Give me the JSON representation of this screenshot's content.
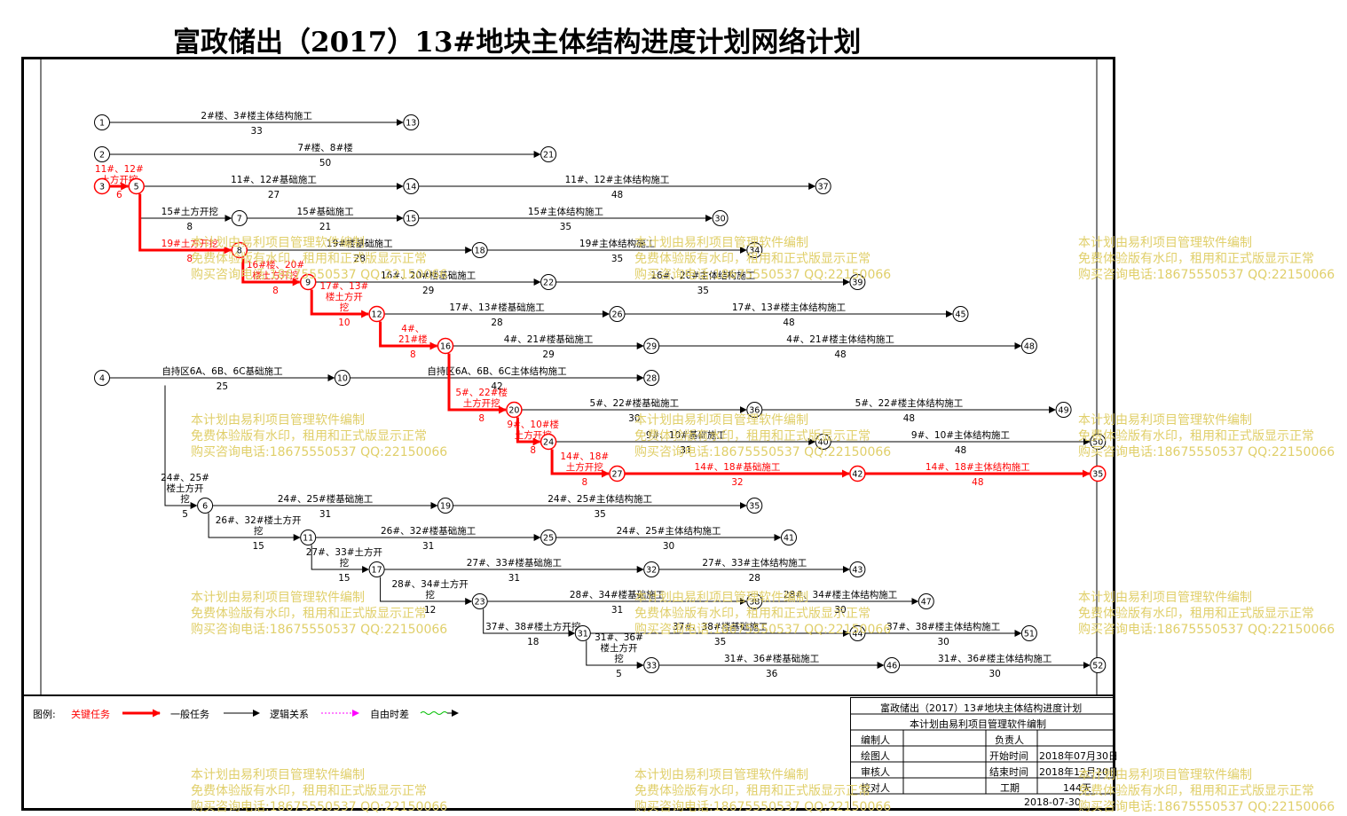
{
  "title": "富政储出（2017）13#地块主体结构进度计划网络计划",
  "colors": {
    "critical": "#ff0000",
    "normal": "#000000",
    "free_float": "#00c000",
    "logic": "#ff00ff",
    "watermark": "#e0cf6a"
  },
  "nodes": [
    {
      "id": "1",
      "col": 0,
      "row": 0
    },
    {
      "id": "13",
      "col": 9,
      "row": 0
    },
    {
      "id": "2",
      "col": 0,
      "row": 1
    },
    {
      "id": "21",
      "col": 13,
      "row": 1
    },
    {
      "id": "3",
      "col": 0,
      "row": 2
    },
    {
      "id": "5",
      "col": 1,
      "row": 2
    },
    {
      "id": "14",
      "col": 9,
      "row": 2
    },
    {
      "id": "37",
      "col": 21,
      "row": 2
    },
    {
      "id": "7",
      "col": 4,
      "row": 3
    },
    {
      "id": "15",
      "col": 9,
      "row": 3
    },
    {
      "id": "30",
      "col": 18,
      "row": 3
    },
    {
      "id": "8",
      "col": 4,
      "row": 4
    },
    {
      "id": "18",
      "col": 11,
      "row": 4
    },
    {
      "id": "34",
      "col": 19,
      "row": 4
    },
    {
      "id": "9",
      "col": 6,
      "row": 5
    },
    {
      "id": "22",
      "col": 13,
      "row": 5
    },
    {
      "id": "39",
      "col": 22,
      "row": 5
    },
    {
      "id": "12",
      "col": 8,
      "row": 6
    },
    {
      "id": "26",
      "col": 15,
      "row": 6
    },
    {
      "id": "45",
      "col": 25,
      "row": 6
    },
    {
      "id": "16",
      "col": 10,
      "row": 7
    },
    {
      "id": "29",
      "col": 16,
      "row": 7
    },
    {
      "id": "48",
      "col": 27,
      "row": 7
    },
    {
      "id": "4",
      "col": 0,
      "row": 8
    },
    {
      "id": "10",
      "col": 7,
      "row": 8
    },
    {
      "id": "28",
      "col": 16,
      "row": 8
    },
    {
      "id": "20",
      "col": 12,
      "row": 9
    },
    {
      "id": "36",
      "col": 19,
      "row": 9
    },
    {
      "id": "49",
      "col": 28,
      "row": 9
    },
    {
      "id": "24",
      "col": 13,
      "row": 10
    },
    {
      "id": "40",
      "col": 21,
      "row": 10
    },
    {
      "id": "50",
      "col": 29,
      "row": 10
    },
    {
      "id": "27",
      "col": 15,
      "row": 11
    },
    {
      "id": "42",
      "col": 22,
      "row": 11
    },
    {
      "id": "35",
      "col": 29,
      "row": 11
    },
    {
      "id": "6",
      "col": 3,
      "row": 12
    },
    {
      "id": "19",
      "col": 10,
      "row": 12
    },
    {
      "id": "35b",
      "col": 19,
      "row": 12
    },
    {
      "id": "11",
      "col": 6,
      "row": 13
    },
    {
      "id": "25",
      "col": 13,
      "row": 13
    },
    {
      "id": "41",
      "col": 20,
      "row": 13
    },
    {
      "id": "17",
      "col": 8,
      "row": 14
    },
    {
      "id": "32",
      "col": 16,
      "row": 14
    },
    {
      "id": "43",
      "col": 22,
      "row": 14
    },
    {
      "id": "23",
      "col": 11,
      "row": 15
    },
    {
      "id": "38",
      "col": 19,
      "row": 15
    },
    {
      "id": "47",
      "col": 24,
      "row": 15
    },
    {
      "id": "31",
      "col": 14,
      "row": 16
    },
    {
      "id": "44",
      "col": 22,
      "row": 16
    },
    {
      "id": "51",
      "col": 27,
      "row": 16
    },
    {
      "id": "33",
      "col": 16,
      "row": 17
    },
    {
      "id": "46",
      "col": 23,
      "row": 17
    },
    {
      "id": "52",
      "col": 29,
      "row": 17
    }
  ],
  "node_labels": {
    "35b": "35"
  },
  "tasks": [
    {
      "from": "1",
      "to": "13",
      "name": "2#楼、3#楼主体结构施工",
      "dur": "33",
      "critical": false
    },
    {
      "from": "2",
      "to": "21",
      "name": "7#楼、8#楼",
      "dur": "50",
      "critical": false
    },
    {
      "from": "3",
      "to": "5",
      "name": "11#、12#\n土方开挖",
      "dur": "6",
      "critical": true,
      "above": true
    },
    {
      "from": "5",
      "to": "14",
      "name": "11#、12#基础施工",
      "dur": "27",
      "critical": false
    },
    {
      "from": "14",
      "to": "37",
      "name": "11#、12#主体结构施工",
      "dur": "48",
      "critical": false
    },
    {
      "from": "5",
      "to": "7",
      "name": "15#土方开挖",
      "dur": "8",
      "critical": false,
      "via": "down"
    },
    {
      "from": "7",
      "to": "15",
      "name": "15#基础施工",
      "dur": "21",
      "critical": false
    },
    {
      "from": "15",
      "to": "30",
      "name": "15#主体结构施工",
      "dur": "35",
      "critical": false
    },
    {
      "from": "5",
      "to": "8",
      "name": "19#土方开挖",
      "dur": "8",
      "critical": true,
      "via": "down"
    },
    {
      "from": "8",
      "to": "18",
      "name": "19#楼基础施工",
      "dur": "28",
      "critical": false
    },
    {
      "from": "18",
      "to": "34",
      "name": "19#主体结构施工",
      "dur": "35",
      "critical": false
    },
    {
      "from": "8",
      "to": "9",
      "name": "16#楼、20#\n楼土方开挖",
      "dur": "8",
      "critical": true,
      "via": "down"
    },
    {
      "from": "9",
      "to": "22",
      "name": "16#、20#楼基础施工",
      "dur": "29",
      "critical": false
    },
    {
      "from": "22",
      "to": "39",
      "name": "16#、20#主体结构施工",
      "dur": "35",
      "critical": false
    },
    {
      "from": "9",
      "to": "12",
      "name": "17#、13#\n楼土方开\n挖",
      "dur": "10",
      "critical": true,
      "via": "down"
    },
    {
      "from": "12",
      "to": "26",
      "name": "17#、13#楼基础施工",
      "dur": "28",
      "critical": false
    },
    {
      "from": "26",
      "to": "45",
      "name": "17#、13#楼主体结构施工",
      "dur": "48",
      "critical": false
    },
    {
      "from": "12",
      "to": "16",
      "name": "4#、\n21#楼",
      "dur": "8",
      "critical": true,
      "via": "down"
    },
    {
      "from": "16",
      "to": "29",
      "name": "4#、21#楼基础施工",
      "dur": "29",
      "critical": false
    },
    {
      "from": "29",
      "to": "48",
      "name": "4#、21#楼主体结构施工",
      "dur": "48",
      "critical": false
    },
    {
      "from": "4",
      "to": "10",
      "name": "自持区6A、6B、6C基础施工",
      "dur": "25",
      "critical": false
    },
    {
      "from": "10",
      "to": "28",
      "name": "自持区6A、6B、6C主体结构施工",
      "dur": "42",
      "critical": false
    },
    {
      "from": "16",
      "to": "20",
      "name": "5#、22#楼\n土方开挖",
      "dur": "8",
      "critical": true,
      "via": "down"
    },
    {
      "from": "20",
      "to": "36",
      "name": "5#、22#楼基础施工",
      "dur": "30",
      "critical": false
    },
    {
      "from": "36",
      "to": "49",
      "name": "5#、22#楼主体结构施工",
      "dur": "48",
      "critical": false
    },
    {
      "from": "20",
      "to": "24",
      "name": "9#、10#楼\n土方开挖",
      "dur": "8",
      "critical": true,
      "via": "down"
    },
    {
      "from": "24",
      "to": "40",
      "name": "9#、10#基础施工",
      "dur": "31",
      "critical": false
    },
    {
      "from": "40",
      "to": "50",
      "name": "9#、10#主体结构施工",
      "dur": "48",
      "critical": false
    },
    {
      "from": "24",
      "to": "27",
      "name": "14#、18#\n土方开挖",
      "dur": "8",
      "critical": true,
      "via": "down"
    },
    {
      "from": "27",
      "to": "42",
      "name": "14#、18#基础施工",
      "dur": "32",
      "critical": true
    },
    {
      "from": "42",
      "to": "35",
      "name": "14#、18#主体结构施工",
      "dur": "48",
      "critical": true
    },
    {
      "from": "4",
      "to": "6",
      "name": "24#、25#\n楼土方开\n挖",
      "dur": "5",
      "critical": false,
      "via": "down",
      "vx": 186
    },
    {
      "from": "6",
      "to": "19",
      "name": "24#、25#楼基础施工",
      "dur": "31",
      "critical": false
    },
    {
      "from": "19",
      "to": "35b",
      "name": "24#、25#主体结构施工",
      "dur": "35",
      "critical": false
    },
    {
      "from": "6",
      "to": "11",
      "name": "26#、32#楼土方开\n挖",
      "dur": "15",
      "critical": false,
      "via": "down"
    },
    {
      "from": "11",
      "to": "25",
      "name": "26#、32#楼基础施工",
      "dur": "31",
      "critical": false
    },
    {
      "from": "25",
      "to": "41",
      "name": "24#、25#主体结构施工",
      "dur": "30",
      "critical": false
    },
    {
      "from": "11",
      "to": "17",
      "name": "27#、33#土方开\n挖",
      "dur": "15",
      "critical": false,
      "via": "down"
    },
    {
      "from": "17",
      "to": "32",
      "name": "27#、33#楼基础施工",
      "dur": "31",
      "critical": false
    },
    {
      "from": "32",
      "to": "43",
      "name": "27#、33#主体结构施工",
      "dur": "28",
      "critical": false
    },
    {
      "from": "17",
      "to": "23",
      "name": "28#、34#土方开\n挖",
      "dur": "12",
      "critical": false,
      "via": "down"
    },
    {
      "from": "23",
      "to": "38",
      "name": "28#、34#楼基础施工",
      "dur": "31",
      "critical": false
    },
    {
      "from": "38",
      "to": "47",
      "name": "28#、34#楼主体结构施工",
      "dur": "30",
      "critical": false
    },
    {
      "from": "23",
      "to": "31",
      "name": "37#、38#楼土方开挖",
      "dur": "18",
      "critical": false,
      "via": "down"
    },
    {
      "from": "31",
      "to": "44",
      "name": "37#、38#楼基础施工",
      "dur": "35",
      "critical": false
    },
    {
      "from": "44",
      "to": "51",
      "name": "37#、38#楼主体结构施工",
      "dur": "30",
      "critical": false
    },
    {
      "from": "31",
      "to": "33",
      "name": "31#、36#\n楼土方开\n挖",
      "dur": "5",
      "critical": false,
      "via": "down"
    },
    {
      "from": "33",
      "to": "46",
      "name": "31#、36#楼基础施工",
      "dur": "36",
      "critical": false
    },
    {
      "from": "46",
      "to": "52",
      "name": "31#、36#楼主体结构施工",
      "dur": "30",
      "critical": false
    }
  ],
  "legend": {
    "prefix": "图例:",
    "critical": "关键任务",
    "normal": "一般任务",
    "logic": "逻辑关系",
    "float": "自由时差"
  },
  "info": {
    "title": "富政储出（2017）13#地块主体结构进度计划",
    "subtitle": "本计划由易利项目管理软件编制",
    "editor": "编制人",
    "drawer": "绘图人",
    "reviewer": "审核人",
    "checker": "校对人",
    "manager": "负责人",
    "start_label": "开始时间",
    "start": "2018年07月30日",
    "end_label": "结束时间",
    "end": "2018年12月20日",
    "period_label": "工期",
    "period": "144天",
    "date": "2018-07-30"
  },
  "watermark": {
    "line1": "本计划由易利项目管理软件编制",
    "line2": "免费体验版有水印，租用和正式版显示正常",
    "line3": "购买咨询电话:18675550537 QQ:22150066"
  }
}
